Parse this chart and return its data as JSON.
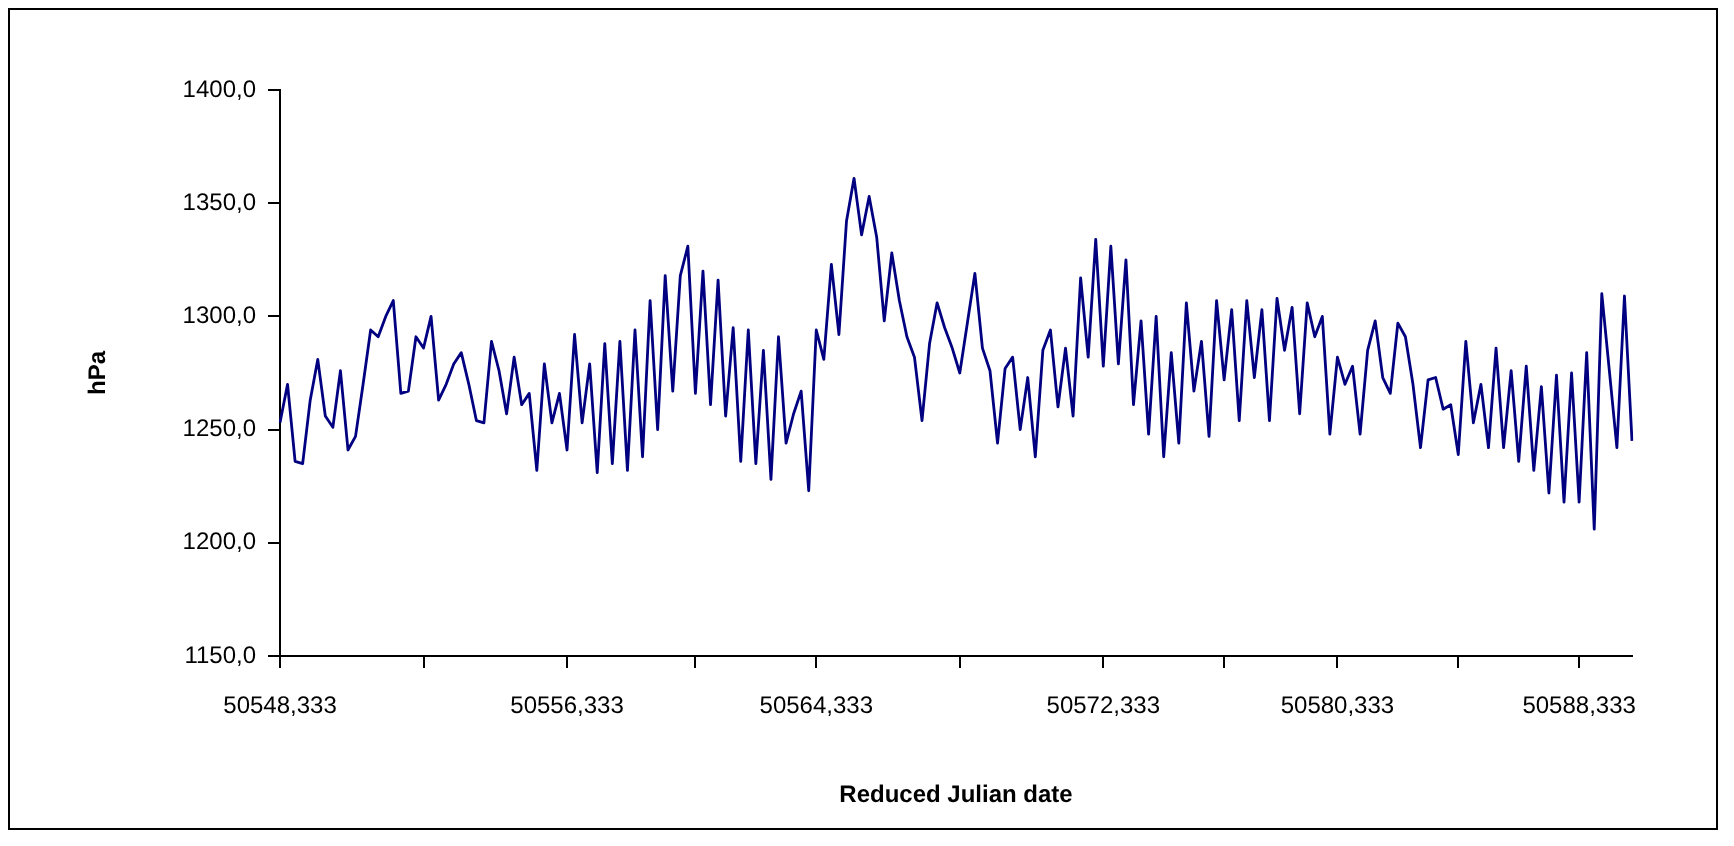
{
  "chart_data": {
    "type": "line",
    "xlabel": "Reduced Julian date",
    "ylabel": "hPa",
    "ylim": [
      1150,
      1400
    ],
    "yticks": [
      {
        "value": 1150,
        "label": "1150,0"
      },
      {
        "value": 1200,
        "label": "1200,0"
      },
      {
        "value": 1250,
        "label": "1250,0"
      },
      {
        "value": 1300,
        "label": "1300,0"
      },
      {
        "value": 1350,
        "label": "1350,0"
      },
      {
        "value": 1400,
        "label": "1400,0"
      }
    ],
    "grid": false,
    "legend": false,
    "marker": "none",
    "line_style": "solid",
    "categories": [
      "50548,333",
      null,
      null,
      null,
      null,
      null,
      null,
      null,
      null,
      null,
      null,
      null,
      null,
      null,
      null,
      null,
      null,
      null,
      null,
      null,
      null,
      null,
      null,
      null,
      null,
      null,
      null,
      null,
      null,
      null,
      null,
      null,
      null,
      null,
      null,
      null,
      null,
      null,
      "50556,333",
      null,
      null,
      null,
      null,
      null,
      null,
      null,
      null,
      null,
      null,
      null,
      null,
      null,
      null,
      null,
      null,
      null,
      null,
      null,
      null,
      null,
      null,
      null,
      null,
      null,
      null,
      null,
      null,
      null,
      null,
      null,
      null,
      "50564,333",
      null,
      null,
      null,
      null,
      null,
      null,
      null,
      null,
      null,
      null,
      null,
      null,
      null,
      null,
      null,
      null,
      null,
      null,
      null,
      null,
      null,
      null,
      null,
      null,
      null,
      null,
      null,
      null,
      null,
      null,
      null,
      null,
      null,
      null,
      null,
      null,
      null,
      "50572,333",
      null,
      null,
      null,
      null,
      null,
      null,
      null,
      null,
      null,
      null,
      null,
      null,
      null,
      null,
      null,
      null,
      null,
      null,
      null,
      null,
      null,
      null,
      null,
      null,
      null,
      null,
      null,
      null,
      null,
      null,
      "50580,333",
      null,
      null,
      null,
      null,
      null,
      null,
      null,
      null,
      null,
      null,
      null,
      null,
      null,
      null,
      null,
      null,
      null,
      null,
      null,
      null,
      null,
      null,
      null,
      null,
      null,
      null,
      null,
      null,
      null,
      null,
      null,
      "50588,333",
      null,
      null,
      null,
      null,
      null,
      null,
      null
    ],
    "series": [
      {
        "color": "#000080",
        "values": [
          1253,
          1270,
          1236,
          1235,
          1263,
          1281,
          1256,
          1251,
          1276,
          1241,
          1247,
          1270,
          1294,
          1291,
          1300,
          1307,
          1266,
          1267,
          1291,
          1286,
          1300,
          1263,
          1270,
          1279,
          1284,
          1270,
          1254,
          1253,
          1289,
          1276,
          1257,
          1282,
          1261,
          1266,
          1232,
          1279,
          1253,
          1266,
          1241,
          1292,
          1253,
          1279,
          1231,
          1288,
          1235,
          1289,
          1232,
          1294,
          1238,
          1307,
          1250,
          1318,
          1267,
          1318,
          1331,
          1266,
          1320,
          1261,
          1316,
          1256,
          1295,
          1236,
          1294,
          1235,
          1285,
          1228,
          1291,
          1244,
          1257,
          1267,
          1223,
          1294,
          1281,
          1323,
          1292,
          1342,
          1361,
          1336,
          1353,
          1335,
          1298,
          1328,
          1307,
          1291,
          1282,
          1254,
          1288,
          1306,
          1295,
          1286,
          1275,
          1297,
          1319,
          1286,
          1276,
          1244,
          1277,
          1282,
          1250,
          1273,
          1238,
          1285,
          1294,
          1260,
          1286,
          1256,
          1317,
          1282,
          1334,
          1278,
          1331,
          1279,
          1325,
          1261,
          1298,
          1248,
          1300,
          1238,
          1284,
          1244,
          1306,
          1267,
          1289,
          1247,
          1307,
          1272,
          1303,
          1254,
          1307,
          1273,
          1303,
          1254,
          1308,
          1285,
          1304,
          1257,
          1306,
          1291,
          1300,
          1248,
          1282,
          1270,
          1278,
          1248,
          1285,
          1298,
          1273,
          1266,
          1297,
          1291,
          1270,
          1242,
          1272,
          1273,
          1259,
          1261,
          1239,
          1289,
          1253,
          1270,
          1242,
          1286,
          1242,
          1276,
          1236,
          1278,
          1232,
          1269,
          1222,
          1274,
          1218,
          1275,
          1218,
          1284,
          1206,
          1310,
          1276,
          1242,
          1309,
          1245
        ]
      }
    ]
  }
}
